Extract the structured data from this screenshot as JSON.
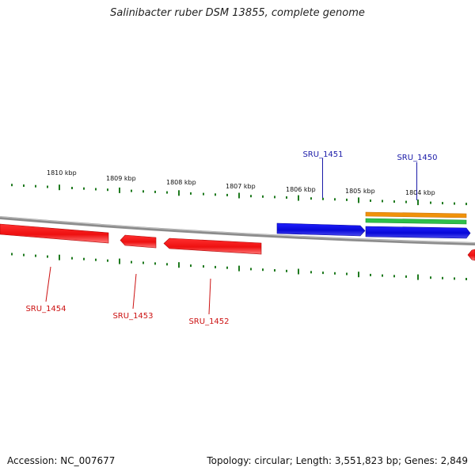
{
  "title": "Salinibacter ruber DSM 13855, complete genome",
  "footer": {
    "accession": "Accession: NC_007677",
    "summary": "Topology: circular; Length: 3,551,823 bp; Genes: 2,849"
  },
  "kbp_labels": [
    "1810 kbp",
    "1809 kbp",
    "1808 kbp",
    "1807 kbp",
    "1806 kbp",
    "1805 kbp",
    "1804 kbp"
  ],
  "genes": {
    "sru_1451": "SRU_1451",
    "sru_1450": "SRU_1450",
    "sru_1454": "SRU_1454",
    "sru_1453": "SRU_1453",
    "sru_1452": "SRU_1452"
  },
  "colors": {
    "forward_gene": "#0b0bdc",
    "reverse_gene": "#ee1111",
    "forward_label": "#1a1aa8",
    "reverse_label": "#cc1111",
    "tick": "#1f7a1f",
    "backbone": "#8a8a8a",
    "feature_orange": "#f0920a",
    "feature_green": "#2ec04a"
  }
}
